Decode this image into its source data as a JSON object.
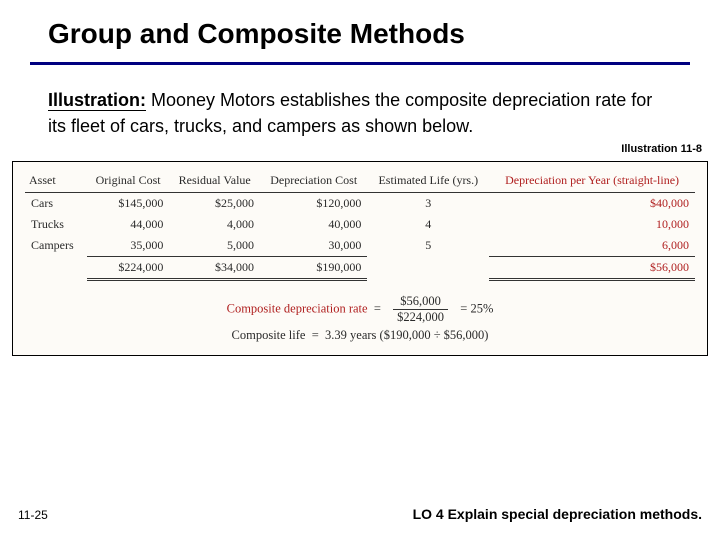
{
  "title": "Group and Composite Methods",
  "intro": {
    "label": "Illustration:",
    "text": "  Mooney Motors establishes the composite depreciation rate for its fleet of cars, trucks, and campers as shown below."
  },
  "illus_tag": "Illustration 11-8",
  "table": {
    "headers": {
      "asset": "Asset",
      "original_cost": "Original Cost",
      "residual_value": "Residual Value",
      "depreciation_cost": "Depreciation Cost",
      "estimated_life": "Estimated Life (yrs.)",
      "dep_per_year": "Depreciation per Year (straight-line)"
    },
    "rows": [
      {
        "asset": "Cars",
        "original_cost": "$145,000",
        "residual_value": "$25,000",
        "depreciation_cost": "$120,000",
        "life": "3",
        "per_year": "$40,000"
      },
      {
        "asset": "Trucks",
        "original_cost": "44,000",
        "residual_value": "4,000",
        "depreciation_cost": "40,000",
        "life": "4",
        "per_year": "10,000"
      },
      {
        "asset": "Campers",
        "original_cost": "35,000",
        "residual_value": "5,000",
        "depreciation_cost": "30,000",
        "life": "5",
        "per_year": "6,000"
      }
    ],
    "totals": {
      "original_cost": "$224,000",
      "residual_value": "$34,000",
      "depreciation_cost": "$190,000",
      "per_year": "$56,000"
    }
  },
  "formulas": {
    "rate_label": "Composite depreciation rate",
    "rate_num": "$56,000",
    "rate_den": "$224,000",
    "rate_result": "25%",
    "life_label": "Composite life",
    "life_text": "3.39 years ($190,000  ÷  $56,000)"
  },
  "footer": {
    "left": "11-25",
    "right": "LO 4  Explain special depreciation methods."
  },
  "colors": {
    "title_rule": "#000080",
    "accent_red": "#b02020",
    "table_bg": "#fdfbf7"
  }
}
